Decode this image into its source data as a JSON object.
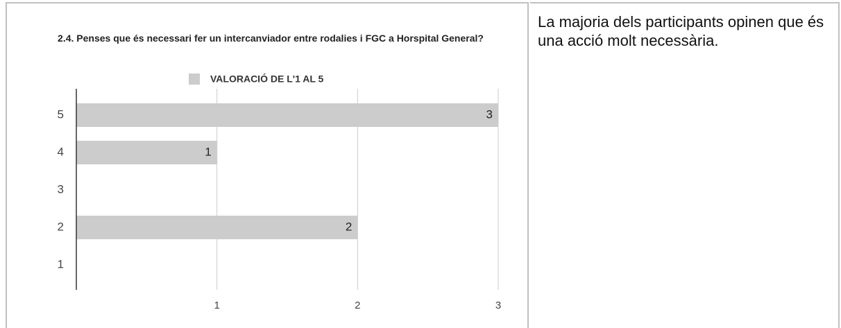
{
  "chart_data": {
    "type": "bar",
    "orientation": "horizontal",
    "title": "2.4. Penses que és necessari fer un intercanviador entre rodalies i FGC a Horspital General?",
    "categories": [
      "5",
      "4",
      "3",
      "2",
      "1"
    ],
    "series": [
      {
        "name": "VALORACIÓ DE L'1 AL 5",
        "color": "#cccccc",
        "values": [
          3,
          1,
          null,
          2,
          null
        ]
      }
    ],
    "xlim": [
      0,
      3
    ],
    "xticks": [
      1,
      2,
      3
    ],
    "grid": true,
    "legend": "top"
  },
  "comment": "La majoria dels participants opinen que és una acció molt necessària."
}
